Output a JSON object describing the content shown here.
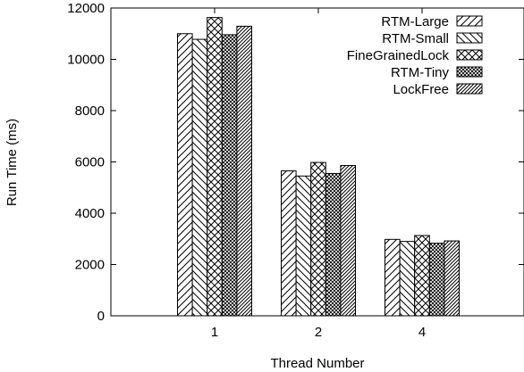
{
  "chart_data": {
    "type": "bar",
    "title": "",
    "xlabel": "Thread Number",
    "ylabel": "Run Time (ms)",
    "categories": [
      "1",
      "2",
      "4"
    ],
    "ylim": [
      0,
      12000
    ],
    "yticks": [
      0,
      2000,
      4000,
      6000,
      8000,
      10000,
      12000
    ],
    "grid": false,
    "legend_position": "top-right",
    "series": [
      {
        "name": "RTM-Large",
        "pattern": "diag-right-sparse",
        "values": [
          11000,
          5650,
          2980
        ]
      },
      {
        "name": "RTM-Small",
        "pattern": "diag-left-sparse",
        "values": [
          10780,
          5450,
          2900
        ]
      },
      {
        "name": "FineGrainedLock",
        "pattern": "crosshatch",
        "values": [
          11630,
          5980,
          3130
        ]
      },
      {
        "name": "RTM-Tiny",
        "pattern": "crosshatch-dense",
        "values": [
          10960,
          5550,
          2830
        ]
      },
      {
        "name": "LockFree",
        "pattern": "diag-right-dense",
        "values": [
          11290,
          5860,
          2920
        ]
      }
    ]
  }
}
